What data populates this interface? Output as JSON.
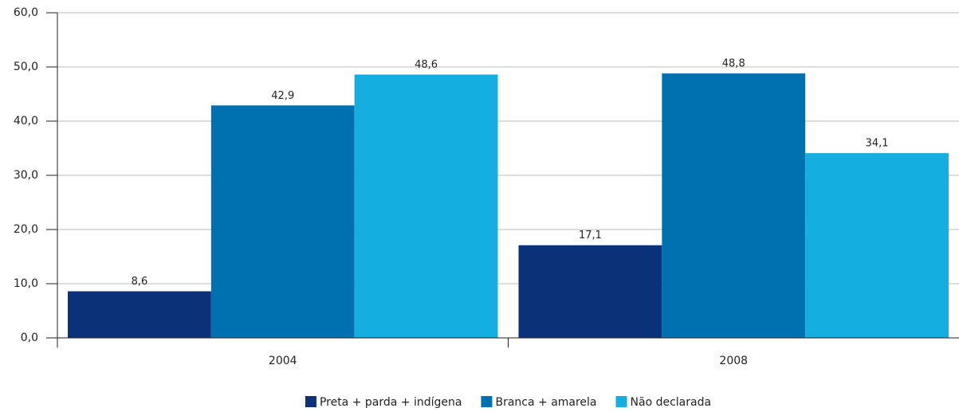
{
  "chart_data": {
    "type": "bar",
    "categories": [
      "2004",
      "2008"
    ],
    "series": [
      {
        "name": "Preta + parda + indígena",
        "color": "#0b3278",
        "values": [
          8.6,
          17.1
        ],
        "value_labels": [
          "8,6",
          "17,1"
        ]
      },
      {
        "name": "Branca + amarela",
        "color": "#0071b0",
        "values": [
          42.9,
          48.8
        ],
        "value_labels": [
          "42,9",
          "48,8"
        ]
      },
      {
        "name": "Não declarada",
        "color": "#14afe0",
        "values": [
          48.6,
          34.1
        ],
        "value_labels": [
          "48,6",
          "34,1"
        ]
      }
    ],
    "ylim": [
      0,
      60
    ],
    "yticks": [
      {
        "value": 0,
        "label": "0,0"
      },
      {
        "value": 10,
        "label": "10,0"
      },
      {
        "value": 20,
        "label": "20,0"
      },
      {
        "value": 30,
        "label": "30,0"
      },
      {
        "value": 40,
        "label": "40,0"
      },
      {
        "value": 50,
        "label": "50,0"
      },
      {
        "value": 60,
        "label": "60,0"
      }
    ],
    "grid": true,
    "legend": "bottom"
  }
}
